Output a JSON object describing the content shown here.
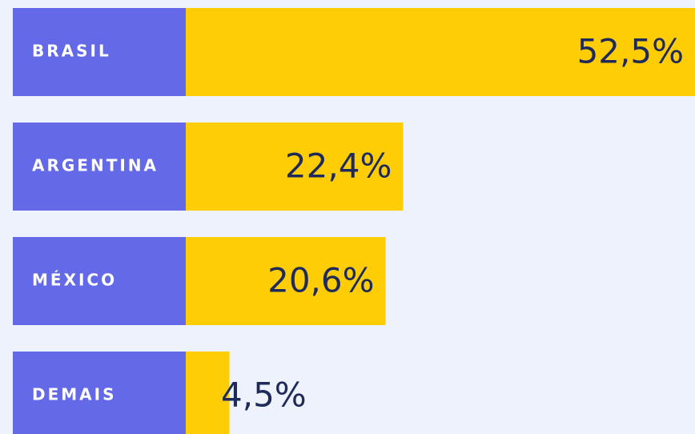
{
  "chart_data": {
    "type": "hbar",
    "categories": [
      "BRASIL",
      "ARGENTINA",
      "MÉXICO",
      "DEMAIS"
    ],
    "values": [
      52.5,
      22.4,
      20.6,
      4.5
    ],
    "value_labels": [
      "52,5%",
      "22,4%",
      "20,6%",
      "4,5%"
    ],
    "color": "#ffcd05",
    "label_color": "#6469e8"
  }
}
